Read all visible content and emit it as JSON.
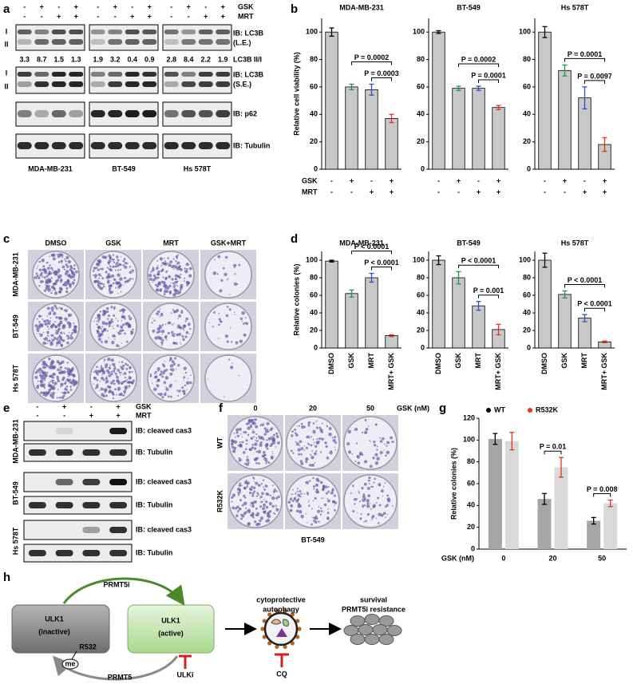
{
  "panel_labels": [
    "a",
    "b",
    "c",
    "d",
    "e",
    "f",
    "g",
    "h"
  ],
  "a": {
    "treatment_rows": [
      {
        "name": "GSK",
        "signs": [
          "-",
          "+",
          "-",
          "+"
        ]
      },
      {
        "name": "MRT",
        "signs": [
          "-",
          "-",
          "+",
          "+"
        ]
      }
    ],
    "band_markers": [
      "I",
      "II",
      "I",
      "II"
    ],
    "blot_labels": [
      "IB: LC3B",
      "(L.E.)",
      "IB: LC3B",
      "(S.E.)",
      "IB: p62",
      "IB: Tubulin"
    ],
    "ratios": [
      [
        3.3,
        8.7,
        1.5,
        1.3
      ],
      [
        1.9,
        3.2,
        0.4,
        0.9
      ],
      [
        2.8,
        8.4,
        2.2,
        1.9
      ]
    ],
    "ratio_label": "LC3B II/I",
    "cell_lines": [
      "MDA-MB-231",
      "BT-549",
      "Hs 578T"
    ]
  },
  "c": {
    "columns": [
      "DMSO",
      "GSK",
      "MRT",
      "GSK+MRT"
    ],
    "rows": [
      "MDA-MB-231",
      "BT-549",
      "Hs 578T"
    ]
  },
  "e": {
    "treatment_rows": [
      {
        "name": "GSK",
        "signs": [
          "-",
          "+",
          "-",
          "+"
        ]
      },
      {
        "name": "MRT",
        "signs": [
          "-",
          "-",
          "+",
          "+"
        ]
      }
    ],
    "blot_labels": [
      "IB: cleaved cas3",
      "IB: Tubulin"
    ],
    "cell_lines": [
      "MDA-MB-231",
      "BT-549",
      "Hs 578T"
    ]
  },
  "f": {
    "doses": [
      "0",
      "20",
      "50"
    ],
    "dose_unit": "GSK (nM)",
    "rows": [
      "WT",
      "R532K"
    ],
    "cell_line": "BT-549"
  },
  "h": {
    "top_arrow": "PRMT5i",
    "bottom_arrow": "PRMT5",
    "inactive": {
      "name": "ULK1",
      "state": "(inactive)",
      "site": "R532",
      "mod": "me"
    },
    "active": {
      "name": "ULK1",
      "state": "(active)"
    },
    "inhibitor": "ULKi",
    "autophagy": [
      "cytoprotective",
      "autophagy"
    ],
    "autophagy_inhibitor": "CQ",
    "outcome": [
      "survival",
      "PRMT5i resistance"
    ]
  },
  "chart_data": [
    {
      "type": "bar",
      "title": "MDA-MB-231",
      "ylabel": "Relative cell viability (%)",
      "categories": [
        null,
        null,
        null,
        null
      ],
      "values": [
        100,
        60,
        58,
        37
      ],
      "errors": [
        3,
        2,
        4,
        3
      ],
      "point_colors": [
        "#000000",
        "#1a9850",
        "#2b50c8",
        "#e8321e"
      ],
      "bar_color": "#c8c8c8",
      "ylim": [
        0,
        110
      ],
      "yticks": [
        0,
        20,
        40,
        60,
        80,
        100
      ],
      "comparisons": [
        "P = 0.0002",
        "P = 0.0003"
      ],
      "conditions": [
        {
          "name": "GSK",
          "signs": [
            "-",
            "+",
            "-",
            "+"
          ]
        },
        {
          "name": "MRT",
          "signs": [
            "-",
            "-",
            "+",
            "+"
          ]
        }
      ]
    },
    {
      "type": "bar",
      "title": "BT-549",
      "categories": [
        null,
        null,
        null,
        null
      ],
      "values": [
        100,
        59,
        59,
        45
      ],
      "errors": [
        1,
        1.5,
        1.5,
        1.5
      ],
      "point_colors": [
        "#000000",
        "#1a9850",
        "#2b50c8",
        "#e8321e"
      ],
      "bar_color": "#c8c8c8",
      "ylim": [
        0,
        110
      ],
      "yticks": [
        0,
        20,
        40,
        60,
        80,
        100
      ],
      "comparisons": [
        "P = 0.0002",
        "P = 0.0001"
      ]
    },
    {
      "type": "bar",
      "title": "Hs 578T",
      "categories": [
        null,
        null,
        null,
        null
      ],
      "values": [
        100,
        72,
        52,
        18
      ],
      "errors": [
        4,
        4,
        8,
        5
      ],
      "point_colors": [
        "#000000",
        "#1a9850",
        "#2b50c8",
        "#e8321e"
      ],
      "bar_color": "#c8c8c8",
      "ylim": [
        0,
        110
      ],
      "yticks": [
        0,
        20,
        40,
        60,
        80,
        100
      ],
      "comparisons": [
        "P = 0.0001",
        "P = 0.0097"
      ]
    },
    {
      "type": "bar",
      "title": "MDA-MB-231",
      "ylabel": "Relative colonies (%)",
      "categories": [
        "DMSO",
        "GSK",
        "MRT",
        "MRT+ GSK"
      ],
      "values": [
        99,
        62,
        80,
        14
      ],
      "errors": [
        1,
        4,
        5,
        1
      ],
      "point_colors": [
        "#000000",
        "#1a9850",
        "#2b50c8",
        "#e8321e"
      ],
      "bar_color": "#c8c8c8",
      "ylim": [
        0,
        110
      ],
      "yticks": [
        0,
        20,
        40,
        60,
        80,
        100
      ],
      "comparisons": [
        "P < 0.0001",
        "P < 0.0001"
      ]
    },
    {
      "type": "bar",
      "title": "BT-549",
      "categories": [
        "DMSO",
        "GSK",
        "MRT",
        "MRT+ GSK"
      ],
      "values": [
        100,
        80,
        48,
        21
      ],
      "errors": [
        5,
        7,
        5,
        6
      ],
      "point_colors": [
        "#000000",
        "#1a9850",
        "#2b50c8",
        "#e8321e"
      ],
      "bar_color": "#c8c8c8",
      "ylim": [
        0,
        110
      ],
      "yticks": [
        0,
        20,
        40,
        60,
        80,
        100
      ],
      "comparisons": [
        "P < 0.0001",
        "P = 0.001"
      ]
    },
    {
      "type": "bar",
      "title": "Hs 578T",
      "categories": [
        "DMSO",
        "GSK",
        "MRT",
        "MRT+ GSK"
      ],
      "values": [
        100,
        61,
        34,
        7
      ],
      "errors": [
        8,
        4,
        4,
        1
      ],
      "point_colors": [
        "#000000",
        "#1a9850",
        "#2b50c8",
        "#e8321e"
      ],
      "bar_color": "#c8c8c8",
      "ylim": [
        0,
        110
      ],
      "yticks": [
        0,
        20,
        40,
        60,
        80,
        100
      ],
      "comparisons": [
        "P < 0.0001",
        "P < 0.0001"
      ]
    },
    {
      "type": "grouped-bar",
      "ylabel": "Relative colonies (%)",
      "xlabel": "GSK (nM)",
      "categories": [
        "0",
        "20",
        "50"
      ],
      "series": [
        {
          "name": "WT",
          "color": "#000000",
          "bar_color": "#a6a6a6",
          "values": [
            101,
            46,
            26
          ],
          "errors": [
            5,
            5,
            3
          ]
        },
        {
          "name": "R532K",
          "color": "#e8321e",
          "bar_color": "#d9d9d9",
          "values": [
            99,
            75,
            42
          ],
          "errors": [
            8,
            9,
            3
          ]
        }
      ],
      "comparisons": [
        null,
        "P = 0.01",
        "P = 0.008"
      ],
      "ylim": [
        0,
        120
      ],
      "yticks": [
        0,
        20,
        40,
        60,
        80,
        100,
        120
      ]
    }
  ]
}
